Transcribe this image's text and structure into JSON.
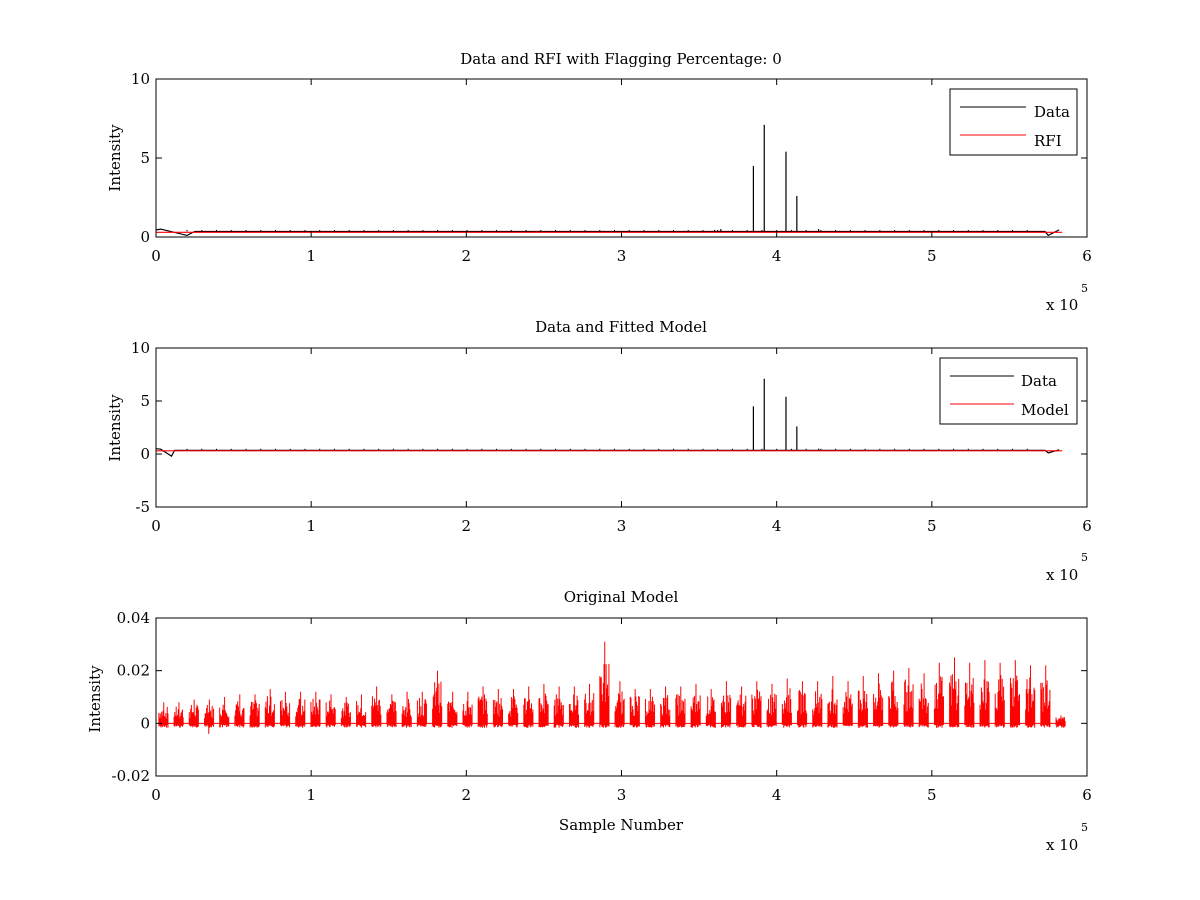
{
  "chart_data": [
    {
      "type": "line",
      "title": "Data and RFI with Flagging Percentage: 0",
      "xlabel": "",
      "ylabel": "Intensity",
      "xlim": [
        0,
        600000
      ],
      "ylim": [
        0,
        10
      ],
      "xticks": [
        0,
        100000,
        200000,
        300000,
        400000,
        500000,
        600000
      ],
      "xtick_labels": [
        "0",
        "1",
        "2",
        "3",
        "4",
        "5",
        "6"
      ],
      "yticks": [
        0,
        5,
        10
      ],
      "ytick_labels": [
        "0",
        "5",
        "10"
      ],
      "exponent_label": "x 10",
      "exponent_power": "5",
      "grid": false,
      "legend_position": "top-right",
      "series": [
        {
          "name": "Data",
          "color": "#000000",
          "baseline": 0.35,
          "spikes": [
            [
              385000,
              4.5
            ],
            [
              392000,
              7.1
            ],
            [
              406000,
              5.4
            ],
            [
              413000,
              2.6
            ],
            [
              427000,
              0.5
            ],
            [
              360000,
              0.45
            ],
            [
              364000,
              0.5
            ]
          ],
          "edge_dips": [
            [
              0,
              0.45
            ],
            [
              3000,
              0.5
            ],
            [
              20000,
              0.1
            ],
            [
              25000,
              0.35
            ],
            [
              575000,
              0.1
            ],
            [
              582000,
              0.45
            ]
          ]
        },
        {
          "name": "RFI",
          "color": "#ff0000",
          "baseline": 0.3,
          "spikes": [
            [
              245000,
              0.4
            ]
          ]
        }
      ]
    },
    {
      "type": "line",
      "title": "Data and Fitted Model",
      "xlabel": "",
      "ylabel": "Intensity",
      "xlim": [
        0,
        600000
      ],
      "ylim": [
        -5,
        10
      ],
      "xticks": [
        0,
        100000,
        200000,
        300000,
        400000,
        500000,
        600000
      ],
      "xtick_labels": [
        "0",
        "1",
        "2",
        "3",
        "4",
        "5",
        "6"
      ],
      "yticks": [
        -5,
        0,
        5,
        10
      ],
      "ytick_labels": [
        "-5",
        "0",
        "5",
        "10"
      ],
      "exponent_label": "x 10",
      "exponent_power": "5",
      "grid": false,
      "legend_position": "top-right",
      "series": [
        {
          "name": "Data",
          "color": "#000000",
          "baseline": 0.35,
          "spikes": [
            [
              385000,
              4.5
            ],
            [
              392000,
              7.1
            ],
            [
              406000,
              5.4
            ],
            [
              413000,
              2.6
            ],
            [
              427000,
              0.5
            ]
          ],
          "edge_dips": [
            [
              0,
              0.5
            ],
            [
              3000,
              0.45
            ],
            [
              10000,
              -0.2
            ],
            [
              575000,
              0.1
            ],
            [
              582000,
              0.4
            ]
          ]
        },
        {
          "name": "Model",
          "color": "#ff0000",
          "baseline": 0.3
        }
      ]
    },
    {
      "type": "line",
      "title": "Original Model",
      "xlabel": "Sample Number",
      "ylabel": "Intensity",
      "xlim": [
        0,
        600000
      ],
      "ylim": [
        -0.02,
        0.04
      ],
      "xticks": [
        0,
        100000,
        200000,
        300000,
        400000,
        500000,
        600000
      ],
      "xtick_labels": [
        "0",
        "1",
        "2",
        "3",
        "4",
        "5",
        "6"
      ],
      "yticks": [
        -0.02,
        0,
        0.02,
        0.04
      ],
      "ytick_labels": [
        "-0.02",
        "0",
        "0.02",
        "0.04"
      ],
      "exponent_label": "x 10",
      "exponent_power": "5",
      "grid": false,
      "series": [
        {
          "color": "#ff0000",
          "x_start": 2000,
          "x_end": 583000,
          "burst_spacing": 9800,
          "peaks": [
            0.008,
            0.008,
            0.009,
            0.009,
            0.01,
            0.011,
            0.011,
            0.013,
            0.012,
            0.012,
            0.012,
            0.011,
            0.01,
            0.011,
            0.014,
            0.011,
            0.012,
            0.012,
            0.02,
            0.012,
            0.012,
            0.014,
            0.013,
            0.013,
            0.014,
            0.015,
            0.014,
            0.014,
            0.015,
            0.031,
            0.016,
            0.013,
            0.013,
            0.014,
            0.014,
            0.015,
            0.013,
            0.016,
            0.014,
            0.016,
            0.015,
            0.017,
            0.016,
            0.016,
            0.018,
            0.016,
            0.018,
            0.019,
            0.02,
            0.021,
            0.019,
            0.023,
            0.025,
            0.023,
            0.024,
            0.023,
            0.024,
            0.022,
            0.022,
            0.003
          ],
          "min_value": -0.004
        }
      ]
    }
  ]
}
